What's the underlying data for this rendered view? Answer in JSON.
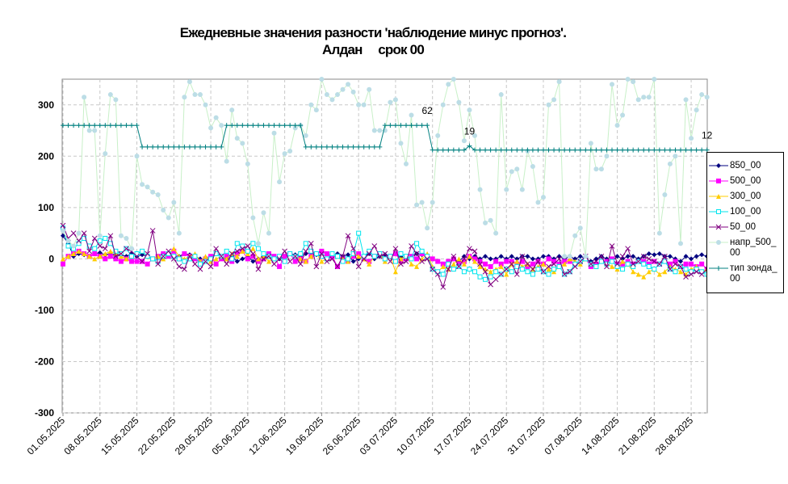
{
  "chart_data": {
    "type": "line",
    "title": "Ежедневные значения разности 'наблюдение минус прогноз'.",
    "subtitle": "Алдан     срок 00",
    "categories": [
      "01.05.2025",
      null,
      null,
      null,
      null,
      null,
      null,
      "08.05.2025",
      null,
      null,
      null,
      null,
      null,
      null,
      "15.05.2025",
      null,
      null,
      null,
      null,
      null,
      null,
      "22.05.2025",
      null,
      null,
      null,
      null,
      null,
      null,
      "29.05.2025",
      null,
      null,
      null,
      null,
      null,
      null,
      "05.06.2025",
      null,
      null,
      null,
      null,
      null,
      null,
      "12.06.2025",
      null,
      null,
      null,
      null,
      null,
      null,
      "19.06.2025",
      null,
      null,
      null,
      null,
      null,
      null,
      "26.06.2025",
      null,
      null,
      null,
      null,
      null,
      null,
      "03 07.2025",
      null,
      null,
      null,
      null,
      null,
      null,
      "10.07.2025",
      null,
      null,
      null,
      null,
      null,
      null,
      "17.07.2025",
      null,
      null,
      null,
      null,
      null,
      null,
      "24.07.2025",
      null,
      null,
      null,
      null,
      null,
      null,
      "31.07.2025",
      null,
      null,
      null,
      null,
      null,
      null,
      "07.08.2025",
      null,
      null,
      null,
      null,
      null,
      null,
      "14.08.2025",
      null,
      null,
      null,
      null,
      null,
      null,
      "21.08.2025",
      null,
      null,
      null,
      null,
      null,
      null,
      "28.08.2025",
      null,
      null,
      null
    ],
    "ylim": [
      -300,
      350
    ],
    "yticks": [
      -300,
      -200,
      -100,
      0,
      100,
      200,
      300
    ],
    "grid": true,
    "series": [
      {
        "name": "850_00",
        "color": "#000080",
        "marker": "diamond",
        "values": [
          45,
          30,
          5,
          10,
          8,
          5,
          10,
          12,
          8,
          10,
          5,
          8,
          5,
          10,
          5,
          8,
          5,
          0,
          -5,
          5,
          10,
          5,
          5,
          10,
          8,
          5,
          0,
          -5,
          5,
          10,
          5,
          0,
          5,
          -5,
          0,
          5,
          -5,
          0,
          5,
          10,
          5,
          0,
          5,
          10,
          8,
          5,
          10,
          12,
          8,
          5,
          0,
          5,
          10,
          5,
          8,
          -5,
          0,
          5,
          10,
          0,
          5,
          8,
          5,
          10,
          5,
          0,
          5,
          10,
          8,
          5,
          0,
          -5,
          -10,
          -5,
          0,
          -5,
          5,
          0,
          5,
          0,
          5,
          0,
          0,
          5,
          0,
          5,
          0,
          5,
          5,
          0,
          0,
          5,
          5,
          0,
          5,
          0,
          5,
          0,
          5,
          0,
          -5,
          0,
          5,
          0,
          -5,
          5,
          0,
          5,
          5,
          0,
          5,
          10,
          8,
          10,
          5,
          5,
          0,
          -5,
          5,
          0,
          5,
          8,
          5
        ]
      },
      {
        "name": "500_00",
        "color": "#ff00ff",
        "marker": "square",
        "values": [
          -10,
          5,
          10,
          15,
          10,
          5,
          10,
          5,
          0,
          5,
          0,
          -5,
          0,
          -5,
          -5,
          -5,
          -10,
          0,
          5,
          10,
          5,
          15,
          0,
          10,
          5,
          0,
          -5,
          0,
          5,
          -10,
          0,
          5,
          -5,
          10,
          15,
          0,
          5,
          -5,
          0,
          10,
          5,
          -15,
          5,
          10,
          -5,
          0,
          -5,
          5,
          10,
          15,
          10,
          5,
          -15,
          0,
          -5,
          5,
          10,
          0,
          -5,
          5,
          10,
          0,
          5,
          10,
          -5,
          0,
          5,
          0,
          10,
          5,
          0,
          -5,
          -10,
          -5,
          0,
          -10,
          -5,
          5,
          0,
          -5,
          -10,
          -15,
          -5,
          -10,
          -5,
          -5,
          -10,
          -5,
          -15,
          -10,
          -5,
          -10,
          0,
          -5,
          -10,
          -5,
          -5,
          -10,
          -5,
          0,
          -15,
          -10,
          -5,
          -5,
          0,
          -10,
          -10,
          -5,
          -10,
          -5,
          -5,
          -10,
          -5,
          -10,
          -5,
          -10,
          -5,
          -15,
          -10,
          -10,
          -15,
          -10,
          -20
        ]
      },
      {
        "name": "300_00",
        "color": "#ffcc00",
        "marker": "triangle",
        "values": [
          0,
          5,
          10,
          15,
          10,
          5,
          0,
          5,
          10,
          15,
          10,
          5,
          0,
          5,
          10,
          15,
          5,
          0,
          5,
          0,
          10,
          20,
          5,
          0,
          5,
          10,
          -5,
          5,
          -5,
          0,
          5,
          0,
          10,
          5,
          15,
          10,
          20,
          0,
          5,
          -5,
          0,
          5,
          -5,
          10,
          5,
          0,
          -5,
          5,
          10,
          -5,
          0,
          10,
          5,
          0,
          -5,
          10,
          5,
          0,
          -10,
          5,
          10,
          -5,
          5,
          -25,
          0,
          5,
          -10,
          -15,
          0,
          10,
          -15,
          -25,
          -15,
          -20,
          -10,
          0,
          -10,
          5,
          -5,
          -15,
          -20,
          -25,
          -20,
          -15,
          -30,
          -10,
          -5,
          -15,
          -10,
          -20,
          -15,
          -10,
          -20,
          -25,
          -15,
          -10,
          0,
          -5,
          -10,
          0,
          -10,
          -15,
          -5,
          -10,
          -15,
          -20,
          -5,
          -10,
          -25,
          -30,
          -35,
          -25,
          -20,
          -30,
          -25,
          -15,
          -20,
          -25,
          -30,
          -20,
          -15,
          -25,
          -20
        ]
      },
      {
        "name": "100_00",
        "color": "#00e5ee",
        "marker": "hollow-square",
        "values": [
          60,
          25,
          20,
          30,
          40,
          25,
          20,
          35,
          40,
          30,
          15,
          10,
          20,
          5,
          10,
          15,
          5,
          0,
          -5,
          5,
          10,
          5,
          0,
          -5,
          0,
          5,
          -10,
          -5,
          0,
          10,
          5,
          15,
          0,
          30,
          25,
          15,
          30,
          20,
          10,
          5,
          0,
          5,
          -5,
          10,
          5,
          10,
          30,
          15,
          10,
          5,
          0,
          10,
          5,
          -5,
          0,
          10,
          50,
          5,
          15,
          5,
          10,
          0,
          5,
          -5,
          10,
          5,
          0,
          30,
          15,
          5,
          -20,
          -25,
          -30,
          -10,
          -20,
          -15,
          -25,
          -20,
          -25,
          -35,
          -40,
          -35,
          -25,
          -30,
          -20,
          -25,
          -15,
          -20,
          -25,
          -30,
          -20,
          -25,
          -30,
          -20,
          -15,
          -30,
          -25,
          -10,
          -5,
          0,
          -10,
          -15,
          -5,
          -10,
          -5,
          -15,
          -20,
          -10,
          -15,
          -5,
          -10,
          -15,
          -20,
          -10,
          -5,
          -20,
          -25,
          -15,
          -20,
          -25,
          -20,
          -25,
          -30
        ]
      },
      {
        "name": "50_00",
        "color": "#800080",
        "marker": "x",
        "values": [
          65,
          40,
          50,
          35,
          50,
          15,
          40,
          25,
          20,
          45,
          5,
          10,
          20,
          15,
          5,
          -5,
          10,
          55,
          -10,
          5,
          15,
          0,
          -15,
          -20,
          5,
          -10,
          -20,
          -5,
          -15,
          20,
          5,
          -10,
          10,
          15,
          20,
          25,
          10,
          -20,
          0,
          5,
          -10,
          0,
          15,
          -5,
          5,
          -10,
          15,
          30,
          -15,
          10,
          -5,
          0,
          -15,
          5,
          45,
          20,
          -15,
          0,
          10,
          25,
          5,
          10,
          -5,
          20,
          -10,
          -5,
          25,
          10,
          -5,
          0,
          -20,
          -30,
          -55,
          -20,
          5,
          -15,
          0,
          20,
          15,
          -10,
          -25,
          -50,
          -40,
          -30,
          -20,
          -10,
          -30,
          5,
          -10,
          -20,
          -5,
          -25,
          -15,
          -10,
          0,
          -30,
          -25,
          -15,
          -5,
          5,
          -10,
          -5,
          5,
          -15,
          25,
          -10,
          5,
          20,
          -10,
          -5,
          5,
          0,
          -5,
          -10,
          5,
          -20,
          -10,
          -15,
          -35,
          -30,
          -25,
          -30,
          -20
        ]
      },
      {
        "name": "напр_500_00",
        "color": "#bcdde6",
        "line_color": "#c8f0c8",
        "marker": "dot",
        "values": [
          55,
          35,
          25,
          50,
          315,
          250,
          250,
          45,
          205,
          320,
          310,
          45,
          40,
          20,
          200,
          145,
          140,
          130,
          125,
          95,
          80,
          110,
          50,
          315,
          345,
          320,
          320,
          300,
          255,
          275,
          260,
          190,
          290,
          235,
          225,
          185,
          80,
          30,
          90,
          50,
          245,
          150,
          205,
          210,
          255,
          260,
          240,
          300,
          290,
          350,
          320,
          310,
          320,
          330,
          340,
          325,
          300,
          300,
          330,
          250,
          250,
          250,
          305,
          310,
          225,
          185,
          280,
          105,
          110,
          60,
          110,
          240,
          300,
          340,
          350,
          305,
          230,
          290,
          240,
          135,
          70,
          75,
          50,
          320,
          135,
          170,
          175,
          135,
          210,
          180,
          110,
          120,
          300,
          310,
          345,
          5,
          5,
          45,
          60,
          5,
          225,
          175,
          175,
          200,
          340,
          260,
          280,
          350,
          345,
          310,
          315,
          315,
          350,
          50,
          125,
          185,
          200,
          30,
          310,
          235,
          290,
          320,
          315
        ]
      },
      {
        "name": "тип зонда_00",
        "color": "#008080",
        "marker": "plus",
        "values": [
          260,
          260,
          260,
          260,
          260,
          260,
          260,
          260,
          260,
          260,
          260,
          260,
          260,
          260,
          260,
          218,
          218,
          218,
          218,
          218,
          218,
          218,
          218,
          218,
          218,
          218,
          218,
          218,
          218,
          218,
          218,
          260,
          260,
          260,
          260,
          260,
          260,
          260,
          260,
          260,
          260,
          260,
          260,
          260,
          260,
          260,
          218,
          218,
          218,
          218,
          218,
          218,
          218,
          218,
          218,
          218,
          218,
          218,
          218,
          218,
          218,
          260,
          260,
          260,
          260,
          260,
          260,
          260,
          260,
          260,
          212,
          212,
          212,
          212,
          212,
          212,
          212,
          220,
          212,
          212,
          212,
          212,
          212,
          212,
          212,
          212,
          212,
          212,
          212,
          212,
          212,
          212,
          212,
          212,
          212,
          212,
          212,
          212,
          212,
          212,
          212,
          212,
          212,
          212,
          212,
          212,
          212,
          212,
          212,
          212,
          212,
          212,
          212,
          212,
          212,
          212,
          212,
          212,
          212,
          212,
          212,
          212,
          212
        ],
        "annotations": [
          {
            "index": 69,
            "text": "62"
          },
          {
            "index": 77,
            "text": "19"
          },
          {
            "index": 122,
            "text": "12"
          }
        ]
      }
    ]
  }
}
